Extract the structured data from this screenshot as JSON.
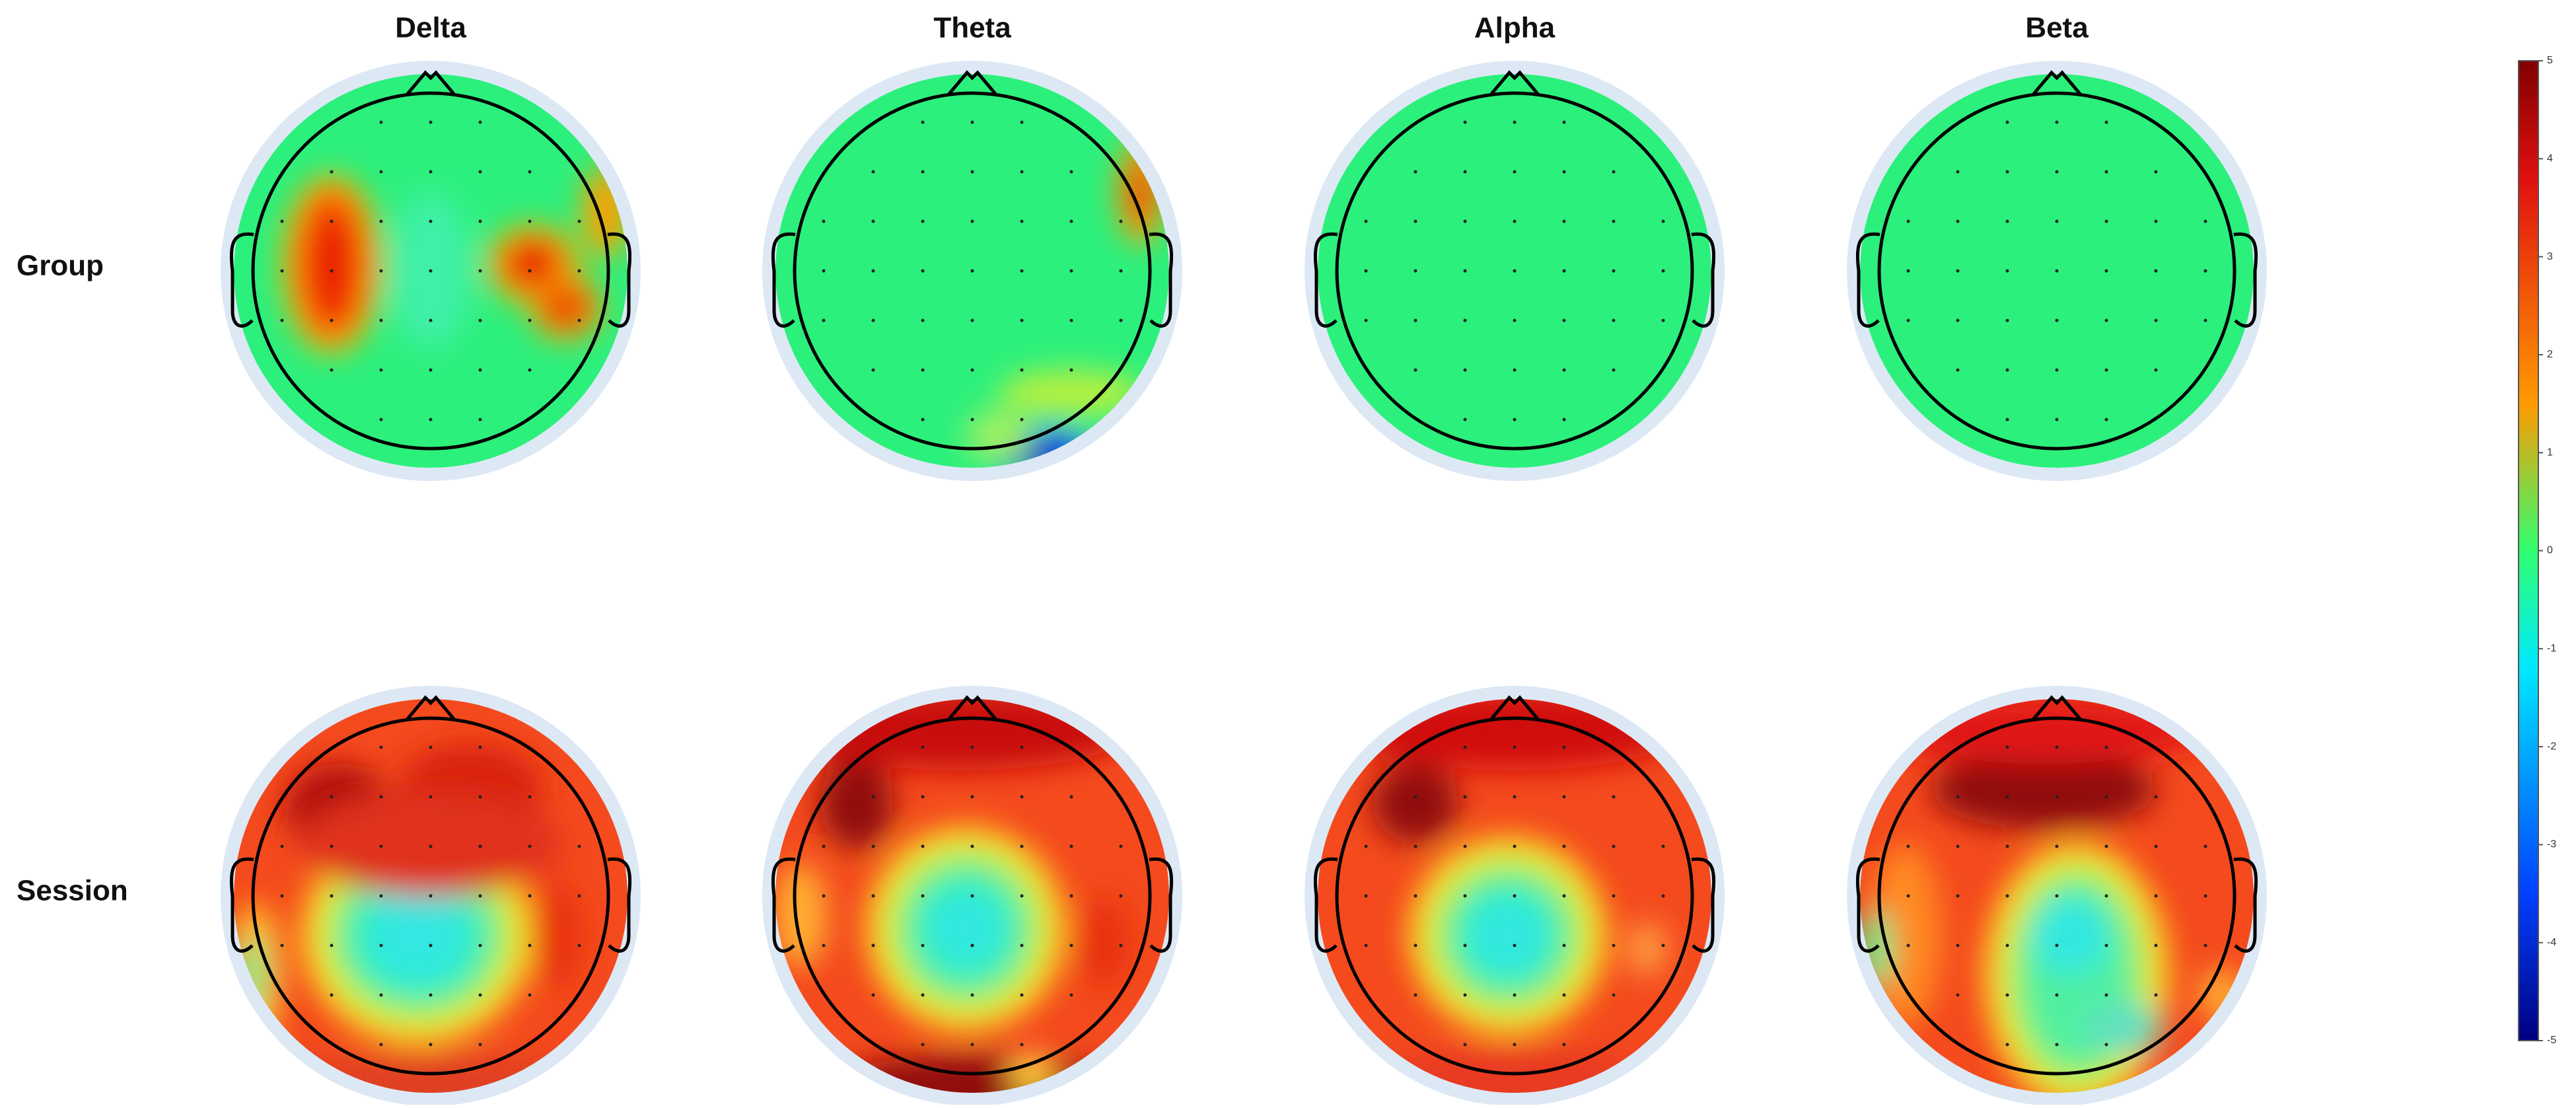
{
  "chart_data": {
    "type": "topomap",
    "columns": [
      "Delta",
      "Theta",
      "Alpha",
      "Beta"
    ],
    "rows": [
      "Group",
      "Session"
    ],
    "colorbar": {
      "ylim": [
        -5,
        5
      ],
      "yticks": [
        5,
        4,
        3,
        2,
        1,
        0,
        -1,
        -2,
        -3,
        -4,
        -5
      ]
    }
  }
}
